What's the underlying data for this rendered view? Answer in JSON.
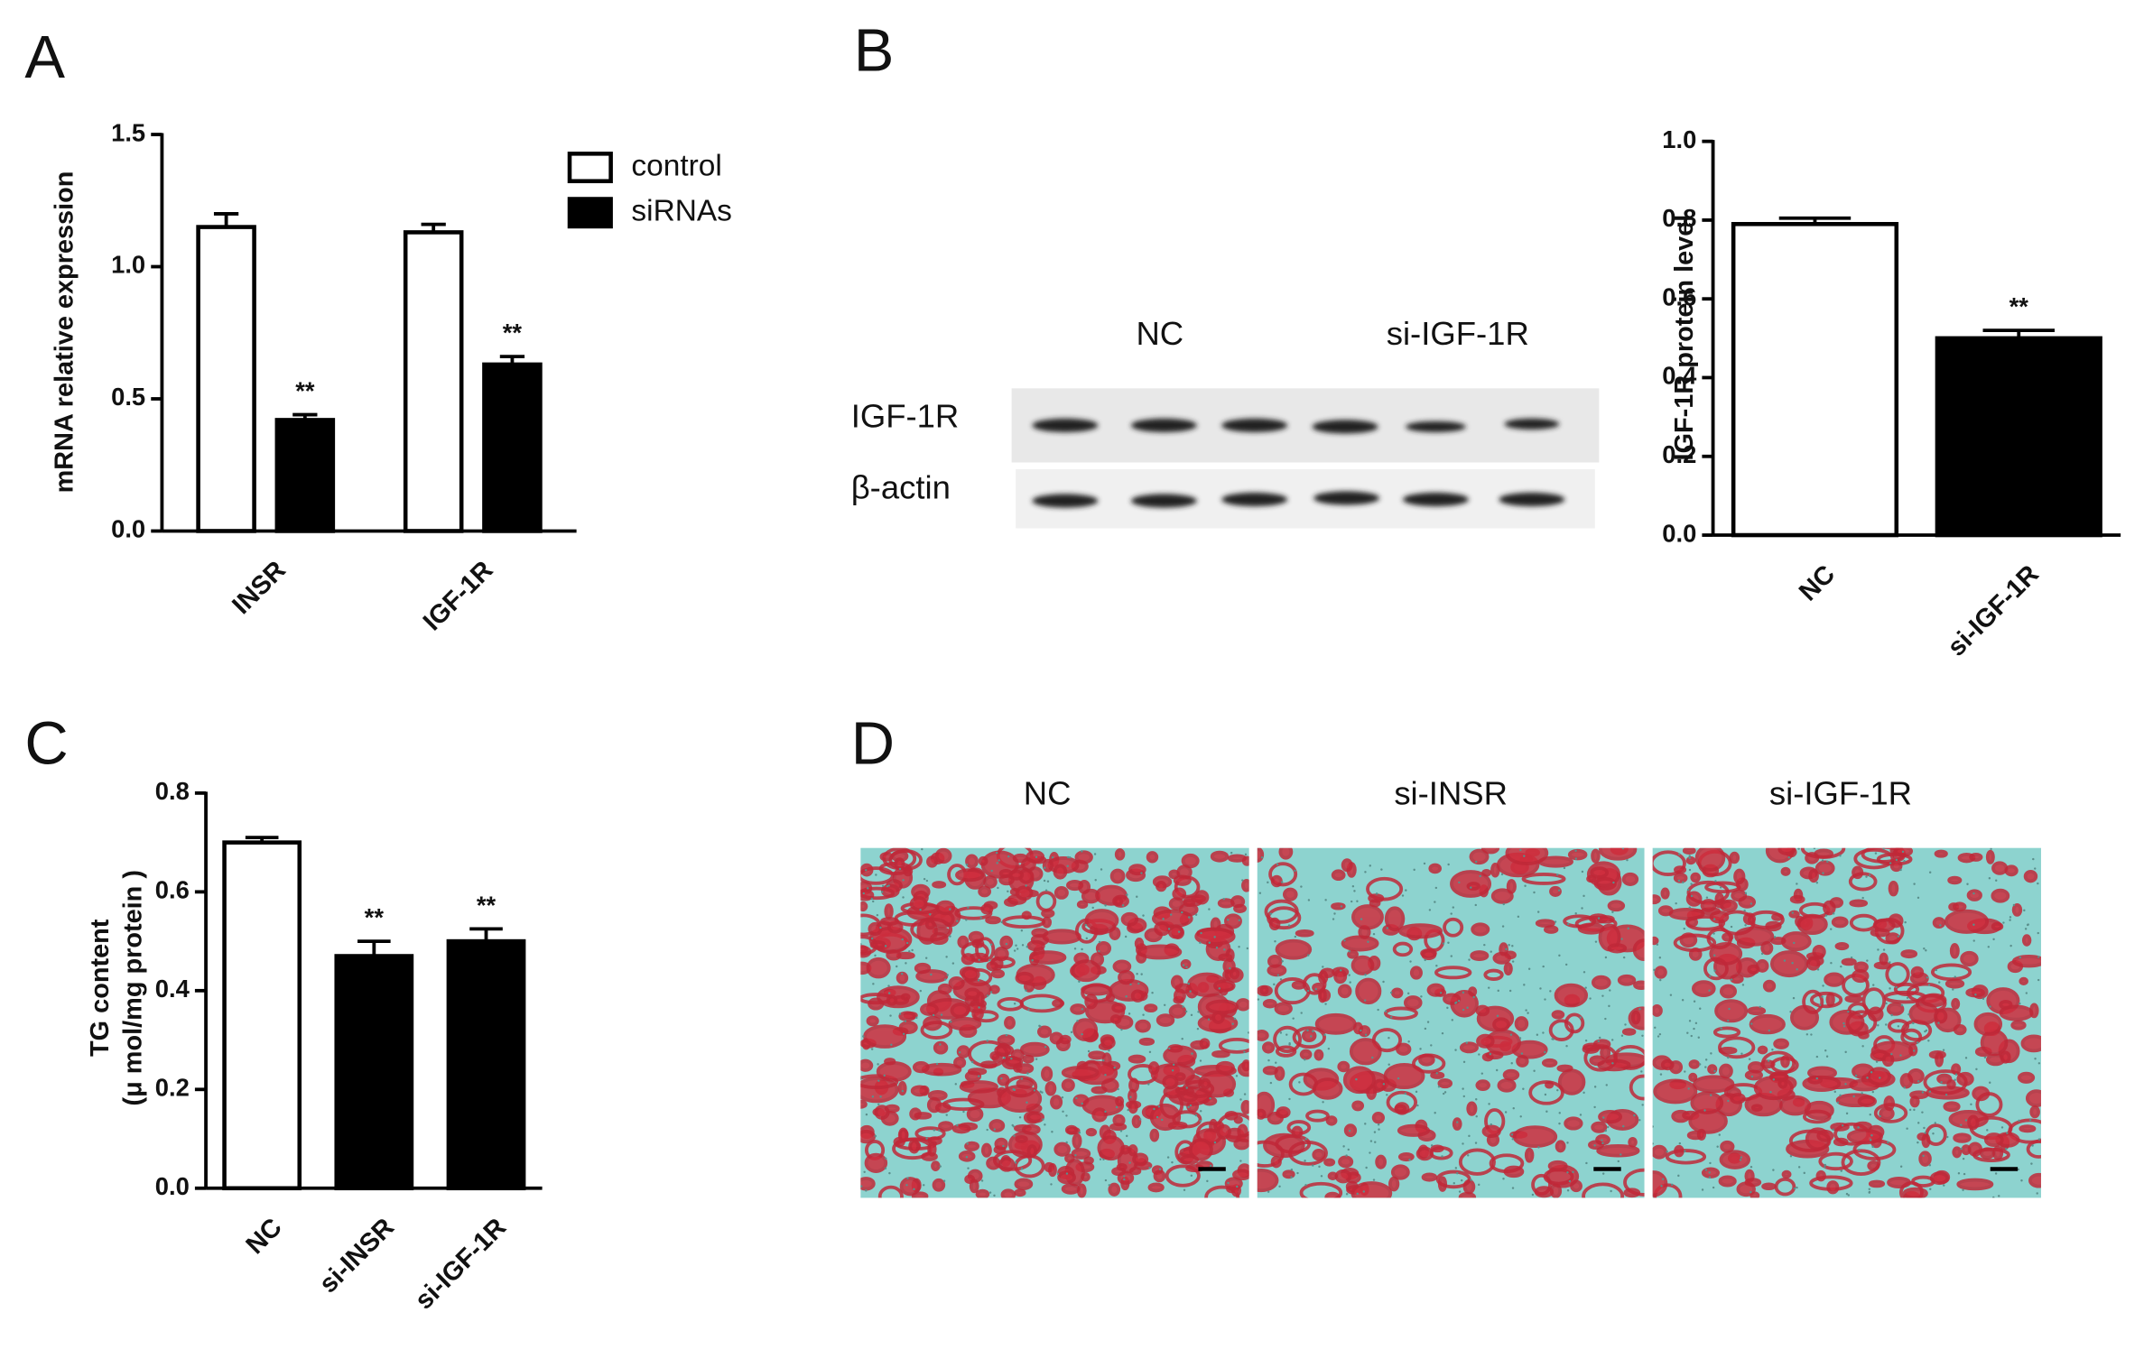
{
  "chart_data": [
    {
      "type": "bar",
      "panel": "A",
      "ylabel": "mRNA relative expression",
      "categories": [
        "INSR",
        "IGF-1R"
      ],
      "series": [
        {
          "name": "control",
          "color": "#ffffff",
          "values": [
            1.15,
            1.13
          ],
          "errors": [
            0.05,
            0.03
          ],
          "annotations": [
            null,
            null
          ]
        },
        {
          "name": "siRNAs",
          "color": "#000000",
          "values": [
            0.42,
            0.63
          ],
          "errors": [
            0.02,
            0.03
          ],
          "annotations": [
            "**",
            "**"
          ]
        }
      ],
      "ylim": [
        0,
        1.5
      ],
      "yticks": [
        {
          "value": 0,
          "label": "0.0"
        },
        {
          "value": 0.5,
          "label": "0.5"
        },
        {
          "value": 1,
          "label": "1.0"
        },
        {
          "value": 1.5,
          "label": "1.5"
        }
      ],
      "legend": "upper right"
    },
    {
      "type": "bar",
      "panel": "B",
      "ylabel": "IGF-1R protein level",
      "categories": [
        "NC",
        "si-IGF-1R"
      ],
      "series": [
        {
          "colors": [
            "#ffffff",
            "#000000"
          ],
          "values": [
            0.79,
            0.5
          ],
          "errors": [
            0.015,
            0.02
          ],
          "annotations": [
            null,
            "**"
          ]
        }
      ],
      "ylim": [
        0,
        1
      ],
      "yticks": [
        {
          "value": 0,
          "label": "0.0"
        },
        {
          "value": 0.2,
          "label": "0.2"
        },
        {
          "value": 0.4,
          "label": "0.4"
        },
        {
          "value": 0.6,
          "label": "0.6"
        },
        {
          "value": 0.8,
          "label": "0.8"
        },
        {
          "value": 1,
          "label": "1.0"
        }
      ]
    },
    {
      "type": "bar",
      "panel": "C",
      "ylabel": [
        "TG content",
        "(μ mol/mg protein )"
      ],
      "categories": [
        "NC",
        "si-INSR",
        "si-IGF-1R"
      ],
      "series": [
        {
          "colors": [
            "#ffffff",
            "#000000",
            "#000000"
          ],
          "values": [
            0.7,
            0.47,
            0.5
          ],
          "errors": [
            0.01,
            0.03,
            0.025
          ],
          "annotations": [
            null,
            "**",
            "**"
          ]
        }
      ],
      "ylim": [
        0,
        0.8
      ],
      "yticks": [
        {
          "value": 0,
          "label": "0.0"
        },
        {
          "value": 0.2,
          "label": "0.2"
        },
        {
          "value": 0.4,
          "label": "0.4"
        },
        {
          "value": 0.6,
          "label": "0.6"
        },
        {
          "value": 0.8,
          "label": "0.8"
        }
      ]
    }
  ],
  "blot": {
    "groups": [
      "NC",
      "si-IGF-1R"
    ],
    "rows": [
      "IGF-1R",
      "β-actin"
    ]
  },
  "micrographs": {
    "panel": "D",
    "labels": [
      "NC",
      "si-INSR",
      "si-IGF-1R"
    ]
  }
}
